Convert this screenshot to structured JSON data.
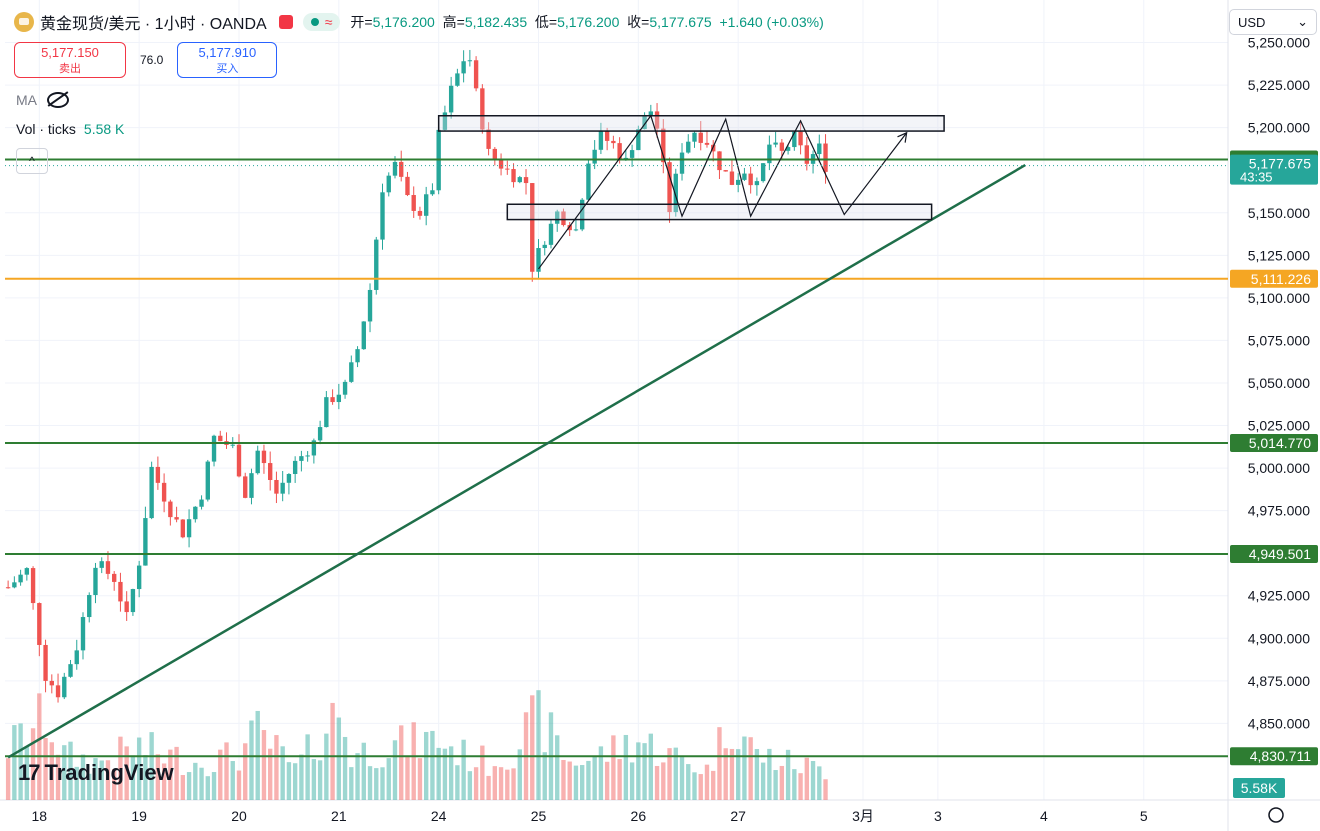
{
  "header": {
    "title": "黄金现货/美元 · 1小时 · OANDA",
    "open_label": "开=",
    "open": "5,176.200",
    "high_label": "高=",
    "high": "5,182.435",
    "low_label": "低=",
    "low": "5,176.200",
    "close_label": "收=",
    "close": "5,177.675",
    "change": "+1.640 (+0.03%)",
    "wave": "≈"
  },
  "trade": {
    "sell_price": "5,177.150",
    "sell_label": "卖出",
    "spread": "76.0",
    "buy_price": "5,177.910",
    "buy_label": "买入"
  },
  "indicators": {
    "ma_label": "MA",
    "vol_label": "Vol · ticks",
    "vol_value": "5.58 K",
    "collapse": "^"
  },
  "currency": "USD",
  "brand": {
    "mark": "17",
    "name": "TradingView"
  },
  "colors": {
    "up": "#26a69a",
    "down": "#ef5350",
    "green_line": "#2e7d32",
    "orange_line": "#f5a623"
  },
  "chart_data": {
    "type": "candlestick",
    "ylim": [
      4805,
      5275
    ],
    "y_ticks": [
      "5,250.000",
      "5,225.000",
      "5,200.000",
      "5,150.000",
      "5,125.000",
      "5,100.000",
      "5,075.000",
      "5,050.000",
      "5,025.000",
      "5,000.000",
      "4,975.000",
      "4,925.000",
      "4,900.000",
      "4,875.000",
      "4,850.000"
    ],
    "y_tick_values": [
      5250,
      5225,
      5200,
      5150,
      5125,
      5100,
      5075,
      5050,
      5025,
      5000,
      4975,
      4925,
      4900,
      4875,
      4850
    ],
    "x_labels": [
      "18",
      "19",
      "20",
      "21",
      "24",
      "25",
      "26",
      "27",
      "3月",
      "3",
      "4",
      "5"
    ],
    "x_label_bar_index": [
      5,
      21,
      37,
      53,
      69,
      85,
      101,
      117,
      137,
      149,
      166,
      182
    ],
    "bars_total": 196,
    "price_labels": [
      {
        "value": 5181.3,
        "text": "5,181.300",
        "color": "#2e7d32"
      },
      {
        "value": 5177.675,
        "text": "5,177.675",
        "sub": "43:35",
        "color": "#26a69a"
      },
      {
        "value": 5111.226,
        "text": "5,111.226",
        "color": "#f5a623"
      },
      {
        "value": 5014.77,
        "text": "5,014.770",
        "color": "#2e7d32"
      },
      {
        "value": 4949.501,
        "text": "4,949.501",
        "color": "#2e7d32"
      },
      {
        "value": 4830.711,
        "text": "4,830.711",
        "color": "#2e7d32"
      }
    ],
    "volume_label": "5.58K",
    "horizontal_lines": [
      {
        "value": 5181.3,
        "color": "#2e7d32"
      },
      {
        "value": 5111.226,
        "color": "#f5a623"
      },
      {
        "value": 5014.77,
        "color": "#2e7d32"
      },
      {
        "value": 4949.501,
        "color": "#2e7d32"
      },
      {
        "value": 4830.711,
        "color": "#2e7d32"
      }
    ],
    "trendline": [
      {
        "bar": 0,
        "value": 4830
      },
      {
        "bar": 163,
        "value": 5178
      }
    ],
    "rectangles": [
      {
        "bar_start": 69,
        "bar_end": 150,
        "top": 5207,
        "bottom": 5198
      },
      {
        "bar_start": 80,
        "bar_end": 148,
        "top": 5155,
        "bottom": 5146
      }
    ],
    "path": [
      {
        "bar": 85,
        "value": 5117
      },
      {
        "bar": 103,
        "value": 5207
      },
      {
        "bar": 108,
        "value": 5148
      },
      {
        "bar": 115,
        "value": 5205
      },
      {
        "bar": 119,
        "value": 5148
      },
      {
        "bar": 127,
        "value": 5204
      },
      {
        "bar": 134,
        "value": 5149
      },
      {
        "bar": 144,
        "value": 5197
      }
    ],
    "keyframes": [
      [
        0,
        4930
      ],
      [
        3,
        4940
      ],
      [
        6,
        4878
      ],
      [
        8,
        4868
      ],
      [
        11,
        4895
      ],
      [
        14,
        4945
      ],
      [
        17,
        4935
      ],
      [
        19,
        4912
      ],
      [
        21,
        4945
      ],
      [
        23,
        5000
      ],
      [
        26,
        4975
      ],
      [
        28,
        4962
      ],
      [
        31,
        4985
      ],
      [
        33,
        5018
      ],
      [
        36,
        5012
      ],
      [
        38,
        4985
      ],
      [
        40,
        5010
      ],
      [
        43,
        4985
      ],
      [
        46,
        5003
      ],
      [
        49,
        5015
      ],
      [
        51,
        5038
      ],
      [
        54,
        5048
      ],
      [
        56,
        5070
      ],
      [
        58,
        5105
      ],
      [
        60,
        5165
      ],
      [
        62,
        5178
      ],
      [
        64,
        5158
      ],
      [
        66,
        5150
      ],
      [
        68,
        5165
      ],
      [
        69,
        5195
      ],
      [
        71,
        5222
      ],
      [
        73,
        5240
      ],
      [
        74,
        5240
      ],
      [
        75,
        5220
      ],
      [
        77,
        5185
      ],
      [
        79,
        5178
      ],
      [
        81,
        5172
      ],
      [
        83,
        5168
      ],
      [
        84,
        5118
      ],
      [
        86,
        5135
      ],
      [
        88,
        5150
      ],
      [
        91,
        5140
      ],
      [
        93,
        5182
      ],
      [
        95,
        5195
      ],
      [
        97,
        5190
      ],
      [
        99,
        5180
      ],
      [
        101,
        5200
      ],
      [
        103,
        5210
      ],
      [
        104,
        5200
      ],
      [
        106,
        5152
      ],
      [
        108,
        5188
      ],
      [
        110,
        5198
      ],
      [
        112,
        5192
      ],
      [
        114,
        5178
      ],
      [
        116,
        5168
      ],
      [
        118,
        5175
      ],
      [
        120,
        5165
      ],
      [
        122,
        5190
      ],
      [
        124,
        5185
      ],
      [
        126,
        5194
      ],
      [
        128,
        5180
      ],
      [
        130,
        5188
      ],
      [
        131,
        5177.675
      ]
    ],
    "volume_keyframes": [
      [
        0,
        0.35
      ],
      [
        6,
        0.55
      ],
      [
        9,
        0.3
      ],
      [
        14,
        0.25
      ],
      [
        21,
        0.35
      ],
      [
        25,
        0.3
      ],
      [
        30,
        0.25
      ],
      [
        37,
        0.3
      ],
      [
        40,
        0.45
      ],
      [
        46,
        0.2
      ],
      [
        53,
        0.6
      ],
      [
        55,
        0.3
      ],
      [
        60,
        0.35
      ],
      [
        69,
        0.4
      ],
      [
        73,
        0.3
      ],
      [
        77,
        0.25
      ],
      [
        80,
        0.3
      ],
      [
        85,
        0.55
      ],
      [
        90,
        0.25
      ],
      [
        95,
        0.3
      ],
      [
        101,
        0.4
      ],
      [
        106,
        0.3
      ],
      [
        112,
        0.2
      ],
      [
        116,
        0.55
      ],
      [
        120,
        0.3
      ],
      [
        125,
        0.25
      ],
      [
        131,
        0.2
      ]
    ]
  }
}
